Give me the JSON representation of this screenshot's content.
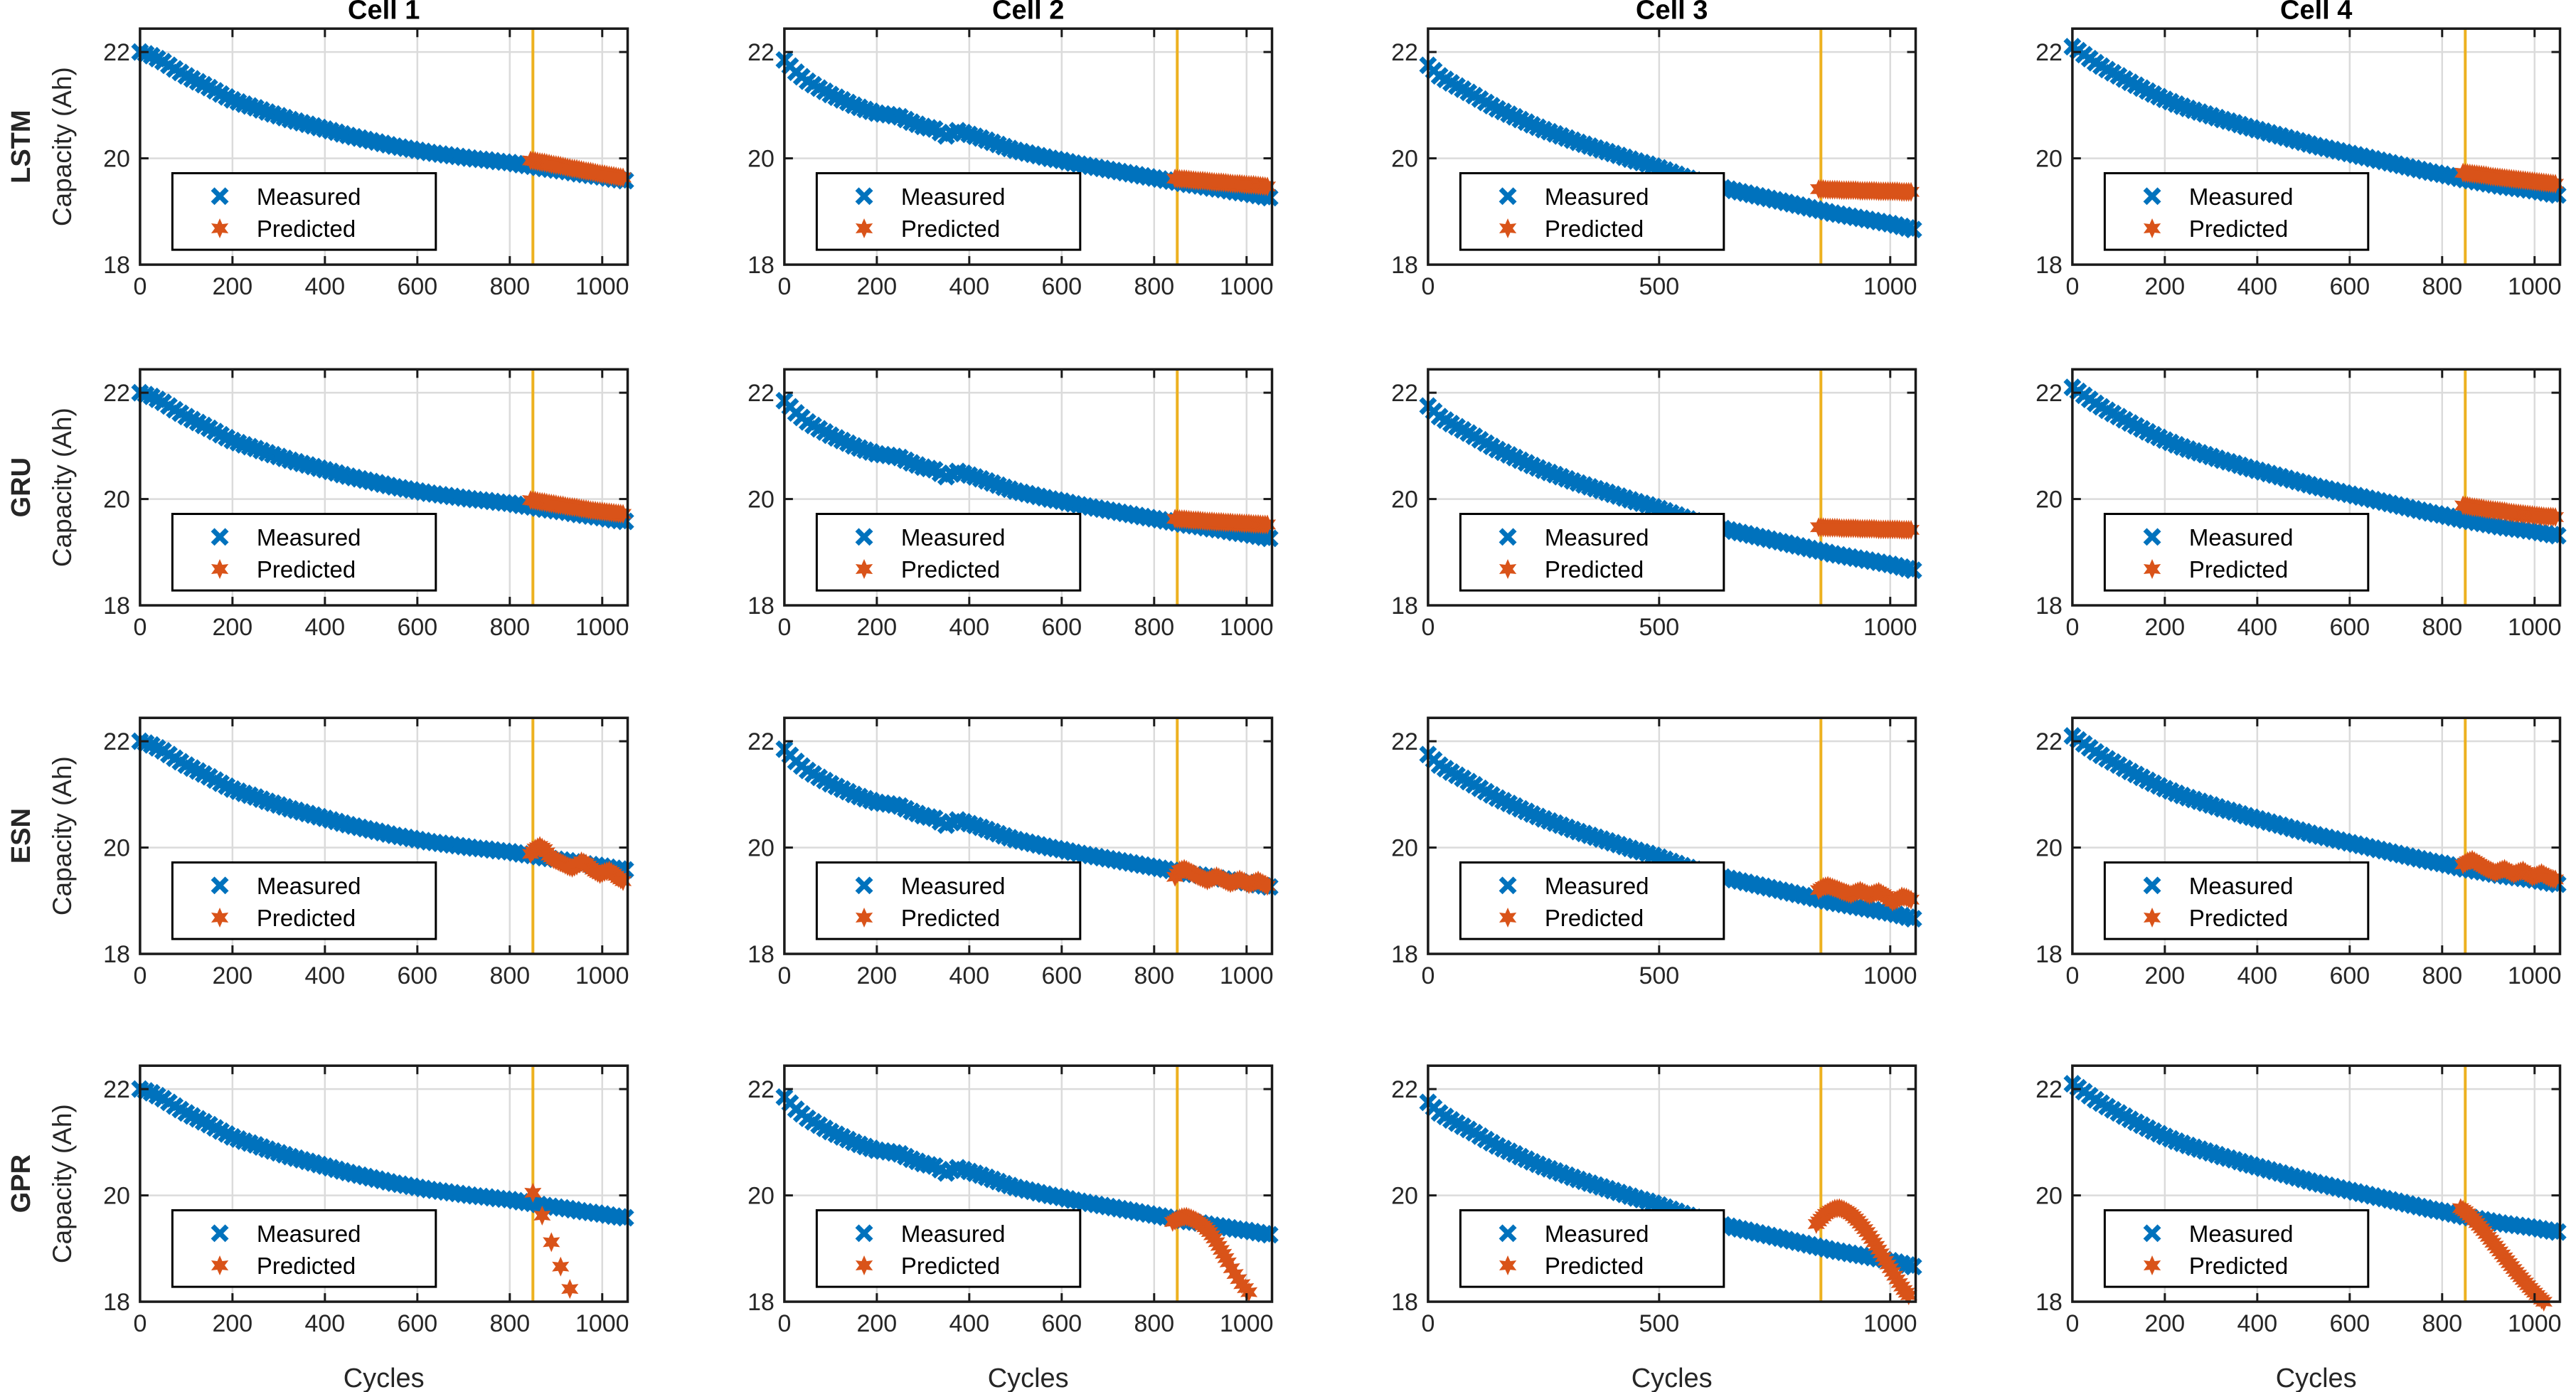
{
  "figure": {
    "columns": [
      "Cell 1",
      "Cell 2",
      "Cell 3",
      "Cell 4"
    ],
    "rows": [
      "LSTM",
      "GRU",
      "ESN",
      "GPR"
    ],
    "ylabel": "Capacity (Ah)",
    "xlabel": "Cycles",
    "legend": {
      "measured": "Measured",
      "predicted": "Predicted"
    },
    "colors": {
      "measured": "#0072BD",
      "predicted": "#D95319",
      "split_line": "#EDB120",
      "grid": "#DBDBDB",
      "axis": "#1a1a1a",
      "tick_text": "#262626",
      "title_text": "#000000",
      "background": "#ffffff"
    }
  },
  "chart_data": {
    "type": "scatter",
    "xlim": [
      0,
      1055
    ],
    "ylim": [
      18,
      22.44
    ],
    "yticks": [
      18,
      20,
      22
    ],
    "xticks_default": [
      0,
      200,
      400,
      600,
      800,
      1000
    ],
    "xticks_cell3": [
      0,
      500,
      1000
    ],
    "split_line_x": 850,
    "grid": true,
    "legend_position": "lower-left",
    "measured_x": [
      0,
      25,
      50,
      75,
      100,
      125,
      150,
      175,
      200,
      225,
      250,
      275,
      300,
      325,
      350,
      375,
      400,
      425,
      450,
      475,
      500,
      525,
      550,
      575,
      600,
      625,
      650,
      675,
      700,
      725,
      750,
      775,
      800,
      825,
      850,
      875,
      900,
      925,
      950,
      975,
      1000,
      1025,
      1050
    ],
    "measured_by_cell": {
      "Cell 1": [
        22.0,
        21.93,
        21.82,
        21.68,
        21.55,
        21.44,
        21.33,
        21.21,
        21.1,
        21.02,
        20.95,
        20.87,
        20.8,
        20.73,
        20.67,
        20.61,
        20.55,
        20.49,
        20.43,
        20.38,
        20.33,
        20.28,
        20.23,
        20.19,
        20.15,
        20.11,
        20.08,
        20.05,
        20.02,
        19.99,
        19.97,
        19.94,
        19.92,
        19.88,
        19.85,
        19.81,
        19.78,
        19.75,
        19.71,
        19.68,
        19.65,
        19.61,
        19.58
      ],
      "Cell 2": [
        21.85,
        21.62,
        21.45,
        21.32,
        21.2,
        21.1,
        21.0,
        20.92,
        20.85,
        20.82,
        20.78,
        20.68,
        20.6,
        20.55,
        20.42,
        20.52,
        20.45,
        20.38,
        20.3,
        20.22,
        20.15,
        20.1,
        20.05,
        20.0,
        19.96,
        19.91,
        19.87,
        19.83,
        19.79,
        19.75,
        19.71,
        19.67,
        19.63,
        19.59,
        19.55,
        19.51,
        19.48,
        19.44,
        19.41,
        19.37,
        19.34,
        19.3,
        19.26
      ],
      "Cell 3": [
        21.75,
        21.55,
        21.42,
        21.3,
        21.18,
        21.05,
        20.93,
        20.83,
        20.73,
        20.63,
        20.54,
        20.46,
        20.38,
        20.3,
        20.23,
        20.16,
        20.09,
        20.02,
        19.95,
        19.89,
        19.82,
        19.74,
        19.66,
        19.59,
        19.53,
        19.47,
        19.42,
        19.37,
        19.32,
        19.27,
        19.22,
        19.17,
        19.12,
        19.07,
        19.02,
        18.97,
        18.93,
        18.89,
        18.85,
        18.81,
        18.77,
        18.72,
        18.66
      ],
      "Cell 4": [
        22.1,
        21.95,
        21.8,
        21.67,
        21.55,
        21.43,
        21.32,
        21.21,
        21.11,
        21.02,
        20.94,
        20.87,
        20.8,
        20.73,
        20.67,
        20.6,
        20.54,
        20.48,
        20.42,
        20.36,
        20.3,
        20.24,
        20.19,
        20.14,
        20.09,
        20.04,
        19.99,
        19.94,
        19.89,
        19.84,
        19.79,
        19.74,
        19.7,
        19.65,
        19.6,
        19.56,
        19.52,
        19.48,
        19.45,
        19.42,
        19.39,
        19.35,
        19.31
      ]
    },
    "predicted": {
      "LSTM": {
        "Cell 1": {
          "subdiv": 2,
          "x": [
            845,
            855,
            865,
            875,
            885,
            895,
            905,
            915,
            925,
            935,
            945,
            955,
            965,
            975,
            985,
            995,
            1005,
            1015,
            1025,
            1035,
            1045
          ],
          "y": [
            19.96,
            19.95,
            19.93,
            19.92,
            19.9,
            19.88,
            19.87,
            19.85,
            19.83,
            19.81,
            19.8,
            19.78,
            19.76,
            19.75,
            19.73,
            19.71,
            19.7,
            19.68,
            19.67,
            19.65,
            19.64
          ]
        },
        "Cell 2": {
          "subdiv": 2,
          "x": [
            845,
            855,
            865,
            875,
            885,
            895,
            905,
            915,
            925,
            935,
            945,
            955,
            965,
            975,
            985,
            995,
            1005,
            1015,
            1025,
            1035,
            1045
          ],
          "y": [
            19.62,
            19.61,
            19.61,
            19.6,
            19.59,
            19.58,
            19.58,
            19.57,
            19.56,
            19.55,
            19.55,
            19.54,
            19.53,
            19.52,
            19.52,
            19.51,
            19.5,
            19.5,
            19.49,
            19.48,
            19.47
          ]
        },
        "Cell 3": {
          "subdiv": 2,
          "x": [
            845,
            855,
            865,
            875,
            885,
            895,
            905,
            915,
            925,
            935,
            945,
            955,
            965,
            975,
            985,
            995,
            1005,
            1015,
            1025,
            1035,
            1045
          ],
          "y": [
            19.42,
            19.42,
            19.41,
            19.41,
            19.41,
            19.4,
            19.4,
            19.4,
            19.4,
            19.39,
            19.39,
            19.39,
            19.39,
            19.38,
            19.38,
            19.38,
            19.38,
            19.38,
            19.37,
            19.37,
            19.37
          ]
        },
        "Cell 4": {
          "subdiv": 2,
          "x": [
            845,
            855,
            865,
            875,
            885,
            895,
            905,
            915,
            925,
            935,
            945,
            955,
            965,
            975,
            985,
            995,
            1005,
            1015,
            1025,
            1035,
            1045
          ],
          "y": [
            19.73,
            19.72,
            19.71,
            19.7,
            19.69,
            19.68,
            19.66,
            19.65,
            19.64,
            19.63,
            19.62,
            19.61,
            19.6,
            19.59,
            19.58,
            19.57,
            19.56,
            19.55,
            19.54,
            19.53,
            19.52
          ]
        }
      },
      "GRU": {
        "Cell 1": {
          "subdiv": 2,
          "x": [
            845,
            855,
            865,
            875,
            885,
            895,
            905,
            915,
            925,
            935,
            945,
            955,
            965,
            975,
            985,
            995,
            1005,
            1015,
            1025,
            1035,
            1045
          ],
          "y": [
            19.98,
            19.97,
            19.95,
            19.94,
            19.92,
            19.91,
            19.89,
            19.88,
            19.86,
            19.85,
            19.84,
            19.82,
            19.81,
            19.79,
            19.78,
            19.77,
            19.76,
            19.75,
            19.74,
            19.73,
            19.72
          ]
        },
        "Cell 2": {
          "subdiv": 2,
          "x": [
            845,
            855,
            865,
            875,
            885,
            895,
            905,
            915,
            925,
            935,
            945,
            955,
            965,
            975,
            985,
            995,
            1005,
            1015,
            1025,
            1035,
            1045
          ],
          "y": [
            19.63,
            19.62,
            19.62,
            19.61,
            19.6,
            19.6,
            19.59,
            19.58,
            19.58,
            19.57,
            19.57,
            19.56,
            19.56,
            19.55,
            19.55,
            19.54,
            19.54,
            19.53,
            19.53,
            19.52,
            19.52
          ]
        },
        "Cell 3": {
          "subdiv": 2,
          "x": [
            845,
            855,
            865,
            875,
            885,
            895,
            905,
            915,
            925,
            935,
            945,
            955,
            965,
            975,
            985,
            995,
            1005,
            1015,
            1025,
            1035,
            1045
          ],
          "y": [
            19.47,
            19.47,
            19.46,
            19.46,
            19.46,
            19.45,
            19.45,
            19.45,
            19.45,
            19.44,
            19.44,
            19.44,
            19.44,
            19.43,
            19.43,
            19.43,
            19.43,
            19.43,
            19.42,
            19.42,
            19.42
          ]
        },
        "Cell 4": {
          "subdiv": 2,
          "x": [
            845,
            855,
            865,
            875,
            885,
            895,
            905,
            915,
            925,
            935,
            945,
            955,
            965,
            975,
            985,
            995,
            1005,
            1015,
            1025,
            1035,
            1045
          ],
          "y": [
            19.88,
            19.87,
            19.85,
            19.84,
            19.83,
            19.81,
            19.8,
            19.79,
            19.78,
            19.77,
            19.75,
            19.74,
            19.73,
            19.72,
            19.71,
            19.7,
            19.69,
            19.68,
            19.67,
            19.67,
            19.66
          ]
        }
      },
      "ESN": {
        "Cell 1": {
          "subdiv": 2,
          "x": [
            845,
            855,
            865,
            875,
            885,
            895,
            905,
            915,
            925,
            935,
            945,
            955,
            965,
            975,
            985,
            995,
            1005,
            1015,
            1025,
            1035,
            1045
          ],
          "y": [
            19.88,
            19.98,
            20.03,
            19.97,
            19.85,
            19.78,
            19.74,
            19.7,
            19.65,
            19.62,
            19.66,
            19.74,
            19.7,
            19.62,
            19.55,
            19.5,
            19.54,
            19.57,
            19.51,
            19.43,
            19.37
          ]
        },
        "Cell 2": {
          "subdiv": 2,
          "x": [
            845,
            855,
            865,
            875,
            885,
            895,
            905,
            915,
            925,
            935,
            945,
            955,
            965,
            975,
            985,
            995,
            1005,
            1015,
            1025,
            1035,
            1045
          ],
          "y": [
            19.45,
            19.57,
            19.6,
            19.56,
            19.51,
            19.46,
            19.42,
            19.38,
            19.42,
            19.46,
            19.42,
            19.37,
            19.33,
            19.36,
            19.4,
            19.36,
            19.31,
            19.34,
            19.38,
            19.33,
            19.28
          ]
        },
        "Cell 3": {
          "subdiv": 2,
          "x": [
            845,
            855,
            865,
            875,
            885,
            895,
            905,
            915,
            925,
            935,
            945,
            955,
            965,
            975,
            985,
            995,
            1005,
            1015,
            1025,
            1035,
            1045
          ],
          "y": [
            19.2,
            19.26,
            19.28,
            19.25,
            19.22,
            19.18,
            19.15,
            19.12,
            19.16,
            19.19,
            19.15,
            19.11,
            19.14,
            19.17,
            19.12,
            19.06,
            18.98,
            19.02,
            19.08,
            19.06,
            19.02
          ]
        },
        "Cell 4": {
          "subdiv": 2,
          "x": [
            845,
            855,
            865,
            875,
            885,
            895,
            905,
            915,
            925,
            935,
            945,
            955,
            965,
            975,
            985,
            995,
            1005,
            1015,
            1025,
            1035,
            1045
          ],
          "y": [
            19.68,
            19.74,
            19.77,
            19.72,
            19.66,
            19.61,
            19.57,
            19.53,
            19.57,
            19.6,
            19.55,
            19.5,
            19.54,
            19.57,
            19.51,
            19.45,
            19.48,
            19.52,
            19.47,
            19.42,
            19.4
          ]
        }
      },
      "GPR": {
        "Cell 1": {
          "subdiv": 1,
          "x": [
            850,
            870,
            890,
            910,
            930
          ],
          "y": [
            20.05,
            19.62,
            19.12,
            18.66,
            18.24
          ]
        },
        "Cell 2": {
          "subdiv": 2,
          "x": [
            840,
            850,
            860,
            870,
            880,
            890,
            900,
            910,
            920,
            930,
            940,
            950,
            960,
            975,
            990,
            1005
          ],
          "y": [
            19.5,
            19.55,
            19.59,
            19.6,
            19.57,
            19.53,
            19.47,
            19.4,
            19.31,
            19.19,
            19.05,
            18.9,
            18.74,
            18.52,
            18.33,
            18.18
          ]
        },
        "Cell 3": {
          "subdiv": 2,
          "x": [
            840,
            850,
            860,
            870,
            880,
            890,
            900,
            910,
            920,
            930,
            940,
            950,
            960,
            970,
            980,
            990,
            1000,
            1010,
            1020,
            1030,
            1040
          ],
          "y": [
            19.46,
            19.56,
            19.65,
            19.71,
            19.75,
            19.76,
            19.73,
            19.68,
            19.61,
            19.52,
            19.42,
            19.31,
            19.18,
            19.05,
            18.91,
            18.77,
            18.63,
            18.49,
            18.35,
            18.22,
            18.12
          ]
        },
        "Cell 4": {
          "subdiv": 2,
          "x": [
            840,
            850,
            860,
            870,
            880,
            890,
            900,
            910,
            920,
            930,
            940,
            950,
            960,
            970,
            980,
            990,
            1000,
            1010,
            1020
          ],
          "y": [
            19.76,
            19.7,
            19.62,
            19.53,
            19.43,
            19.33,
            19.22,
            19.11,
            19.0,
            18.89,
            18.78,
            18.67,
            18.56,
            18.46,
            18.36,
            18.26,
            18.17,
            18.08,
            18.0
          ]
        }
      }
    }
  }
}
